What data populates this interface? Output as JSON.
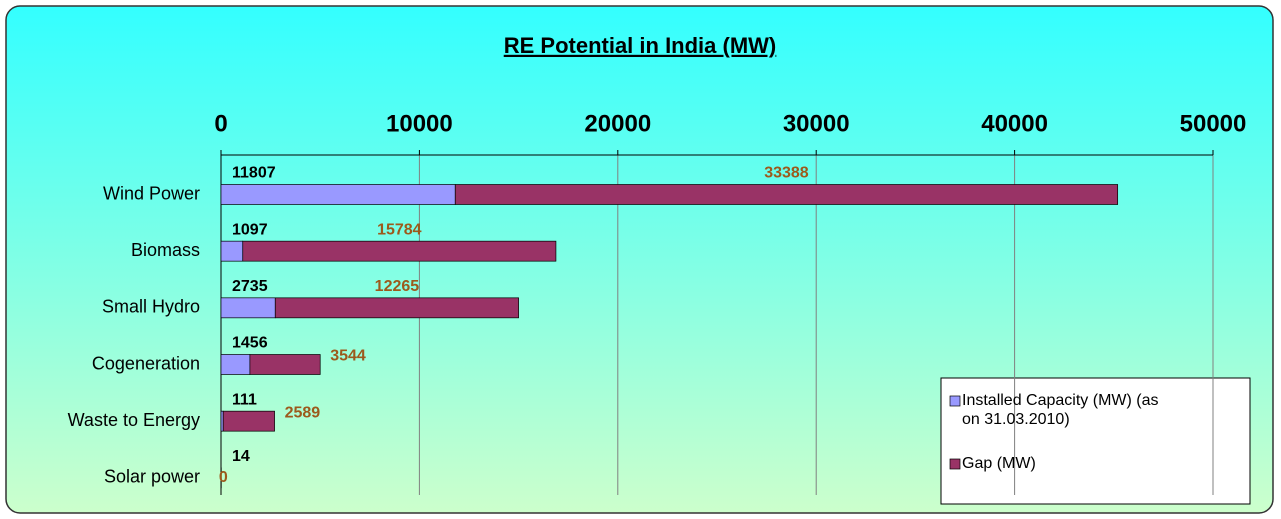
{
  "chart_data": {
    "type": "stacked_bar_horizontal",
    "title": "RE Potential in India (MW)",
    "categories": [
      "Wind Power",
      "Biomass",
      "Small Hydro",
      "Cogeneration",
      "Waste to Energy",
      "Solar power"
    ],
    "series": [
      {
        "name": "Installed Capacity (MW) (as on 31.03.2010)",
        "color": "#9999ff",
        "label_color": "#000000",
        "values": [
          11807,
          1097,
          2735,
          1456,
          111,
          14
        ]
      },
      {
        "name": "Gap (MW)",
        "color": "#993366",
        "label_color": "#9c5a1c",
        "values": [
          33388,
          15784,
          12265,
          3544,
          2589,
          0
        ]
      }
    ],
    "xlim": [
      0,
      50000
    ],
    "xticks": [
      0,
      10000,
      20000,
      30000,
      40000,
      50000
    ],
    "grid": true,
    "legend": "lower right"
  }
}
